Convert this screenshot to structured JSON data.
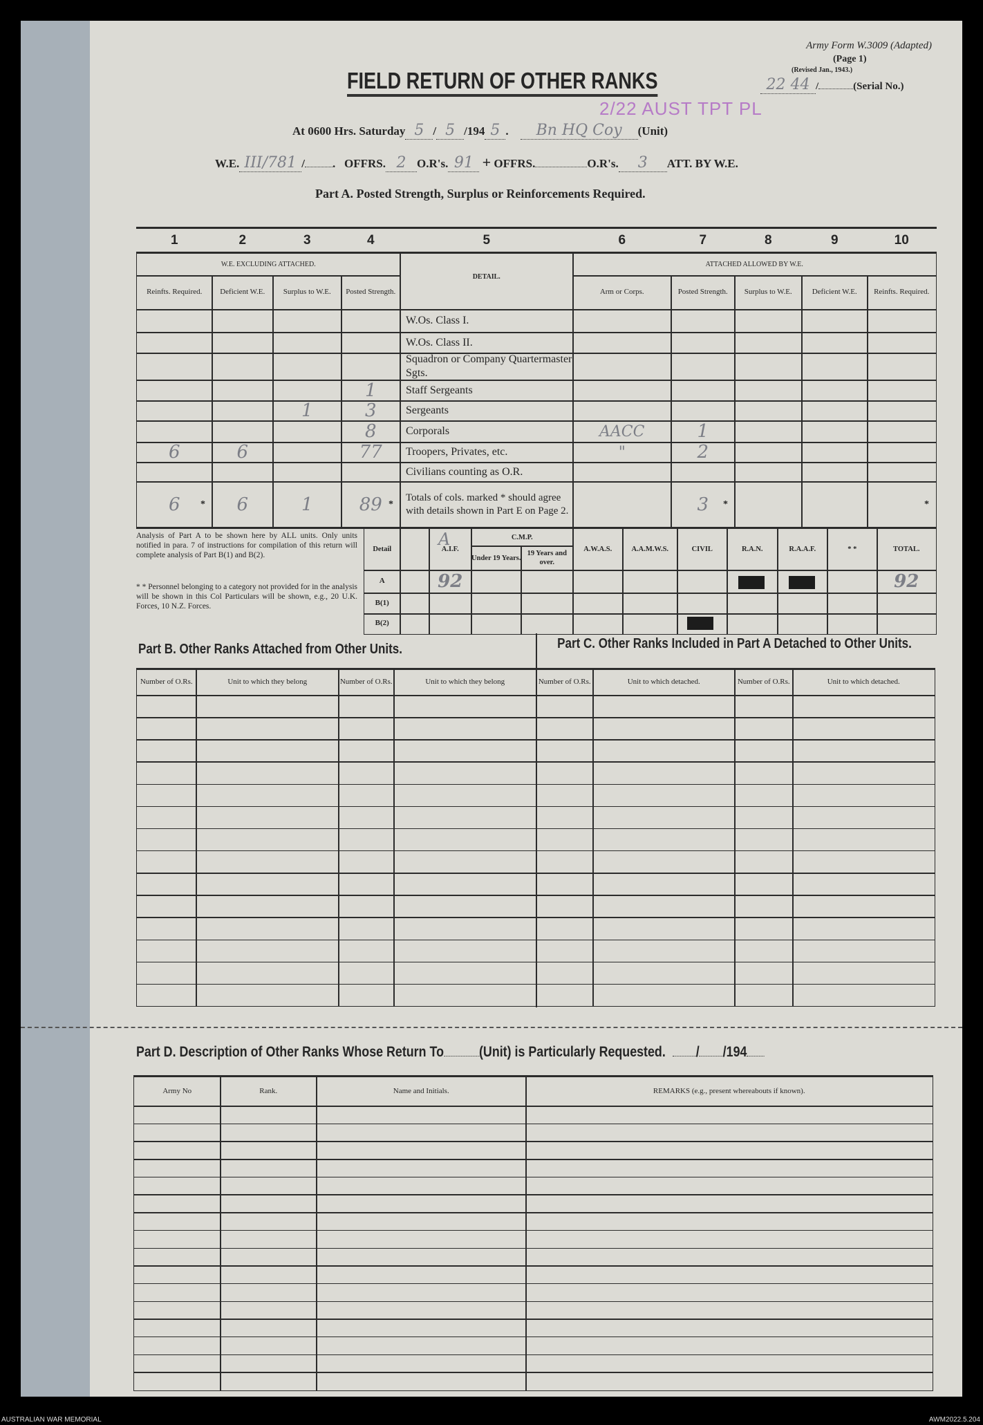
{
  "header": {
    "form_id": "Army Form W.3009 (Adapted)",
    "page": "(Page 1)",
    "revised": "(Revised Jan., 1943.)",
    "title": "FIELD RETURN OF OTHER RANKS",
    "serial_sep": "/",
    "serial_label": "(Serial No.)",
    "serial_handwritten": "22 44",
    "stamp": "2/22 AUST TPT PL",
    "stamp_color": "#b67bc7",
    "line1": {
      "prefix": "At 0600 Hrs. Saturday",
      "sep": "/",
      "year": "/194",
      "unit_label": "(Unit)",
      "hw_day": "5",
      "hw_month": "5",
      "hw_year": "5",
      "hw_unit": "Bn HQ Coy"
    },
    "line2": {
      "we": "W.E.",
      "sep": "/",
      "offrs": "OFFRS.",
      "ors": "O.R's.",
      "plus": "+",
      "offrs2": "OFFRS.",
      "ors2": "O.R's.",
      "att": "ATT. BY W.E.",
      "hw_we": "III/781",
      "hw_offrs": "2",
      "hw_ors": "91",
      "hw_att_ors": "3"
    },
    "part_a_title": "Part A.  Posted Strength, Surplus or Reinforcements Required."
  },
  "part_a": {
    "col_numbers": [
      "1",
      "2",
      "3",
      "4",
      "5",
      "6",
      "7",
      "8",
      "9",
      "10"
    ],
    "group_left": "W.E. EXCLUDING ATTACHED.",
    "detail": "DETAIL.",
    "group_right": "ATTACHED ALLOWED BY W.E.",
    "subheaders": [
      "Reinfts. Required.",
      "Deficient W.E.",
      "Surplus to W.E.",
      "Posted Strength.",
      "Arm or Corps.",
      "Posted Strength.",
      "Surplus to W.E.",
      "Deficient W.E.",
      "Reinfts. Required."
    ],
    "rows": [
      {
        "detail": "W.Os. Class I.",
        "values": [
          "",
          "",
          "",
          "",
          "",
          "",
          "",
          "",
          ""
        ]
      },
      {
        "detail": "W.Os. Class II.",
        "values": [
          "",
          "",
          "",
          "",
          "",
          "",
          "",
          "",
          ""
        ]
      },
      {
        "detail": "Squadron or Company Quartermaster Sgts.",
        "values": [
          "",
          "",
          "",
          "",
          "",
          "",
          "",
          "",
          ""
        ]
      },
      {
        "detail": "Staff Sergeants",
        "values": [
          "",
          "",
          "",
          "1",
          "",
          "",
          "",
          "",
          ""
        ]
      },
      {
        "detail": "Sergeants",
        "values": [
          "",
          "",
          "1",
          "3",
          "",
          "",
          "",
          "",
          ""
        ]
      },
      {
        "detail": "Corporals",
        "values": [
          "",
          "",
          "",
          "8",
          "AACC",
          "1",
          "",
          "",
          ""
        ]
      },
      {
        "detail": "Troopers, Privates, etc.",
        "values": [
          "6",
          "6",
          "",
          "77",
          "\"",
          "2",
          "",
          "",
          ""
        ]
      },
      {
        "detail": "Civilians counting as O.R.",
        "values": [
          "",
          "",
          "",
          "",
          "",
          "",
          "",
          "",
          ""
        ]
      },
      {
        "detail": "Totals of cols. marked * should agree with details shown in Part E on Page 2.",
        "values": [
          "6",
          "6",
          "1",
          "89",
          "",
          "3",
          "",
          "",
          ""
        ]
      }
    ],
    "total_mark": "*"
  },
  "analysis": {
    "note1": "Analysis of Part A to be shown here by ALL units.  Only units notified in para. 7 of instructions for compilation of this return will complete analysis of Part B(1) and B(2).",
    "note2": "* * Personnel belonging to a category not provided for in the analysis will be shown in this Col  Particulars will be shown, e.g., 20 U.K. Forces, 10 N.Z. Forces.",
    "detail_label": "Detail",
    "blank_col_hw": "A",
    "aif": "A.I.F.",
    "cmp": "C.M.P.",
    "cmp_under": "Under 19 Years.",
    "cmp_over": "19 Years and over.",
    "awas": "A.W.A.S.",
    "aamws": "A.A.M.W.S.",
    "civil": "CIVIL",
    "ran": "R.A.N.",
    "raaf": "R.A.A.F.",
    "other": "* *",
    "total": "TOTAL.",
    "rows": [
      {
        "label": "A",
        "aif": "92",
        "total": "92"
      },
      {
        "label": "B(1)",
        "aif": "",
        "total": ""
      },
      {
        "label": "B(2)",
        "aif": "",
        "total": ""
      }
    ]
  },
  "part_b": {
    "title": "Part B.  Other Ranks Attached from Other Units.",
    "headers": [
      "Number of O.Rs.",
      "Unit to which they belong",
      "Number of O.Rs.",
      "Unit to which they belong"
    ]
  },
  "part_c": {
    "title": "Part C.  Other Ranks Included in Part A Detached to Other Units.",
    "headers": [
      "Number of O.Rs.",
      "Unit to which detached.",
      "Number of O.Rs.",
      "Unit to which detached."
    ]
  },
  "part_d": {
    "title_pre": "Part D.  Description of Other Ranks Whose Return To",
    "title_post": "(Unit) is Particularly Requested.",
    "date_sep": "/",
    "date_year": "/194",
    "headers": [
      "Army No",
      "Rank.",
      "Name and Initials.",
      "REMARKS  (e.g.,  present  whereabouts  if  known)."
    ]
  },
  "footer": {
    "left": "AUSTRALIAN WAR MEMORIAL",
    "right": "AWM2022.5.204"
  }
}
